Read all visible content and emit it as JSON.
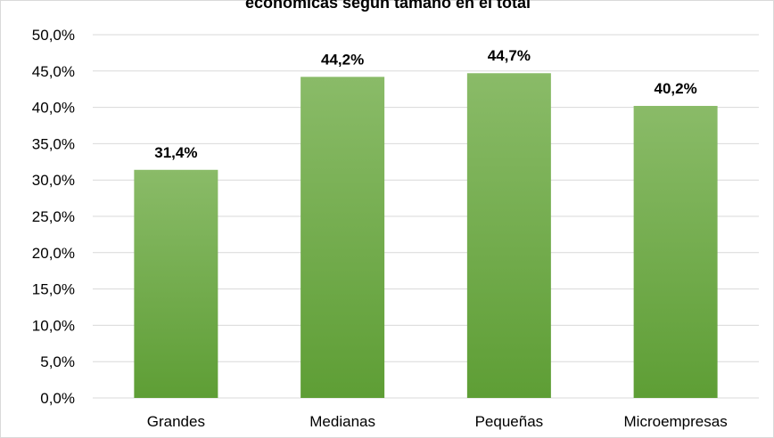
{
  "chart_data": {
    "type": "bar",
    "title": "económicas según tamaño en el total",
    "categories": [
      "Grandes",
      "Medianas",
      "Pequeñas",
      "Microempresas"
    ],
    "values": [
      31.4,
      44.2,
      44.7,
      40.2
    ],
    "data_labels": [
      "31,4%",
      "44,2%",
      "44,7%",
      "40,2%"
    ],
    "ylim": [
      0,
      50
    ],
    "y_ticks": [
      0,
      5,
      10,
      15,
      20,
      25,
      30,
      35,
      40,
      45,
      50
    ],
    "y_tick_labels": [
      "0,0%",
      "5,0%",
      "10,0%",
      "15,0%",
      "20,0%",
      "25,0%",
      "30,0%",
      "35,0%",
      "40,0%",
      "45,0%",
      "50,0%"
    ],
    "xlabel": "",
    "ylabel": "",
    "grid": true,
    "legend": "none",
    "colors": {
      "bar_top": "#8abb68",
      "bar_bottom": "#5e9e35",
      "grid": "#d9d9d9"
    }
  }
}
